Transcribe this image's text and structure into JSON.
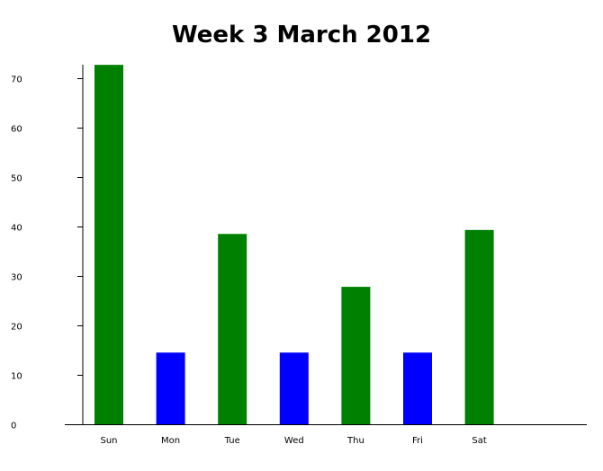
{
  "chart_data": {
    "type": "bar",
    "title": "Week 3 March 2012",
    "xlabel": "",
    "ylabel": "",
    "categories": [
      "Sun",
      "Mon",
      "Tue",
      "Wed",
      "Thu",
      "Fri",
      "Sat"
    ],
    "values": [
      72.7,
      14.5,
      38.5,
      14.5,
      27.8,
      14.5,
      39.3
    ],
    "bar_colors": [
      "#008000",
      "#0000ff",
      "#008000",
      "#0000ff",
      "#008000",
      "#0000ff",
      "#008000"
    ],
    "ylim": [
      0,
      72.7
    ],
    "yticks": [
      0,
      10,
      20,
      30,
      40,
      50,
      60,
      70
    ],
    "grid": false,
    "legend": "none"
  }
}
